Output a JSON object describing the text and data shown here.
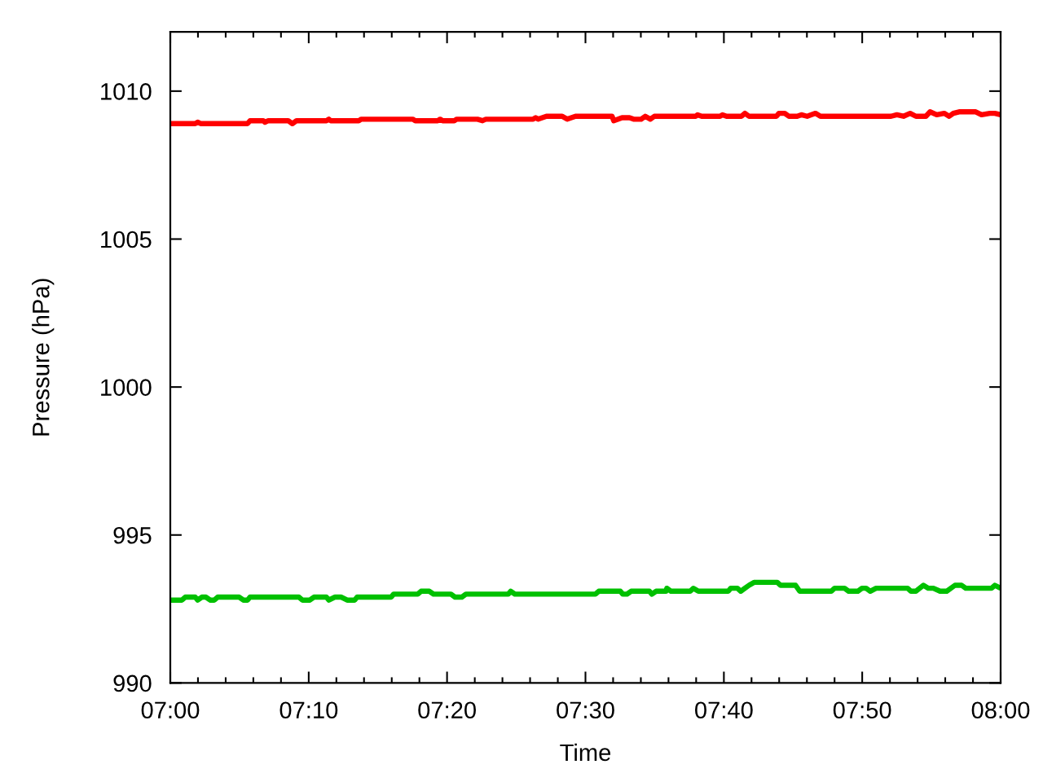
{
  "chart_data": {
    "type": "line",
    "xlabel": "Time",
    "ylabel": "Pressure (hPa)",
    "xlim": [
      7.0,
      8.0
    ],
    "ylim": [
      990,
      1012
    ],
    "xticks": [
      {
        "value": 7.0,
        "label": "07:00"
      },
      {
        "value": 7.0333,
        "label": null
      },
      {
        "value": 7.0667,
        "label": null
      },
      {
        "value": 7.1,
        "label": null
      },
      {
        "value": 7.1333,
        "label": null
      },
      {
        "value": 7.1667,
        "label": "07:10"
      },
      {
        "value": 7.2,
        "label": null
      },
      {
        "value": 7.2333,
        "label": null
      },
      {
        "value": 7.2667,
        "label": null
      },
      {
        "value": 7.3,
        "label": null
      },
      {
        "value": 7.3333,
        "label": "07:20"
      },
      {
        "value": 7.3667,
        "label": null
      },
      {
        "value": 7.4,
        "label": null
      },
      {
        "value": 7.4333,
        "label": null
      },
      {
        "value": 7.4667,
        "label": null
      },
      {
        "value": 7.5,
        "label": "07:30"
      },
      {
        "value": 7.5333,
        "label": null
      },
      {
        "value": 7.5667,
        "label": null
      },
      {
        "value": 7.6,
        "label": null
      },
      {
        "value": 7.6333,
        "label": null
      },
      {
        "value": 7.6667,
        "label": "07:40"
      },
      {
        "value": 7.7,
        "label": null
      },
      {
        "value": 7.7333,
        "label": null
      },
      {
        "value": 7.7667,
        "label": null
      },
      {
        "value": 7.8,
        "label": null
      },
      {
        "value": 7.8333,
        "label": "07:50"
      },
      {
        "value": 7.8667,
        "label": null
      },
      {
        "value": 7.9,
        "label": null
      },
      {
        "value": 7.9333,
        "label": null
      },
      {
        "value": 7.9667,
        "label": null
      },
      {
        "value": 8.0,
        "label": "08:00"
      }
    ],
    "yticks": [
      990,
      995,
      1000,
      1005,
      1010
    ],
    "series": [
      {
        "color": "#ff0000",
        "x": [
          7.0,
          7.03,
          7.033,
          7.037,
          7.093,
          7.096,
          7.112,
          7.114,
          7.118,
          7.142,
          7.147,
          7.152,
          7.188,
          7.191,
          7.193,
          7.227,
          7.23,
          7.292,
          7.295,
          7.322,
          7.325,
          7.328,
          7.342,
          7.345,
          7.37,
          7.376,
          7.38,
          7.437,
          7.44,
          7.443,
          7.453,
          7.472,
          7.478,
          7.488,
          7.532,
          7.534,
          7.544,
          7.553,
          7.558,
          7.567,
          7.572,
          7.578,
          7.583,
          7.633,
          7.635,
          7.64,
          7.662,
          7.665,
          7.67,
          7.688,
          7.692,
          7.697,
          7.73,
          7.733,
          7.74,
          7.745,
          7.755,
          7.76,
          7.767,
          7.777,
          7.783,
          7.868,
          7.875,
          7.883,
          7.891,
          7.898,
          7.91,
          7.915,
          7.923,
          7.932,
          7.938,
          7.943,
          7.95,
          7.97,
          7.977,
          7.987,
          7.993,
          8.0
        ],
        "values": [
          1008.9,
          1008.9,
          1008.95,
          1008.9,
          1008.9,
          1009.0,
          1009.0,
          1008.95,
          1009.0,
          1009.0,
          1008.9,
          1009.0,
          1009.0,
          1009.05,
          1009.0,
          1009.0,
          1009.05,
          1009.05,
          1009.0,
          1009.0,
          1009.05,
          1009.0,
          1009.0,
          1009.05,
          1009.05,
          1009.0,
          1009.05,
          1009.05,
          1009.1,
          1009.05,
          1009.15,
          1009.15,
          1009.05,
          1009.15,
          1009.15,
          1009.0,
          1009.1,
          1009.1,
          1009.05,
          1009.05,
          1009.15,
          1009.05,
          1009.15,
          1009.15,
          1009.2,
          1009.15,
          1009.15,
          1009.2,
          1009.15,
          1009.15,
          1009.25,
          1009.15,
          1009.15,
          1009.25,
          1009.25,
          1009.15,
          1009.15,
          1009.2,
          1009.15,
          1009.25,
          1009.15,
          1009.15,
          1009.2,
          1009.15,
          1009.25,
          1009.15,
          1009.15,
          1009.3,
          1009.2,
          1009.25,
          1009.15,
          1009.25,
          1009.3,
          1009.3,
          1009.2,
          1009.25,
          1009.25,
          1009.2
        ]
      },
      {
        "color": "#00c000",
        "x": [
          7.0,
          7.014,
          7.018,
          7.03,
          7.033,
          7.038,
          7.043,
          7.048,
          7.053,
          7.057,
          7.083,
          7.088,
          7.093,
          7.096,
          7.155,
          7.159,
          7.168,
          7.173,
          7.188,
          7.191,
          7.198,
          7.206,
          7.213,
          7.222,
          7.225,
          7.266,
          7.269,
          7.298,
          7.302,
          7.312,
          7.317,
          7.338,
          7.343,
          7.351,
          7.356,
          7.407,
          7.41,
          7.415,
          7.512,
          7.516,
          7.542,
          7.545,
          7.55,
          7.555,
          7.577,
          7.58,
          7.585,
          7.597,
          7.598,
          7.603,
          7.626,
          7.63,
          7.636,
          7.672,
          7.675,
          7.683,
          7.687,
          7.692,
          7.697,
          7.703,
          7.731,
          7.735,
          7.753,
          7.758,
          7.796,
          7.8,
          7.812,
          7.817,
          7.828,
          7.833,
          7.838,
          7.843,
          7.85,
          7.888,
          7.892,
          7.898,
          7.907,
          7.913,
          7.919,
          7.927,
          7.935,
          7.945,
          7.953,
          7.958,
          7.989,
          7.993,
          8.0
        ],
        "values": [
          992.8,
          992.8,
          992.9,
          992.9,
          992.8,
          992.9,
          992.9,
          992.8,
          992.8,
          992.9,
          992.9,
          992.8,
          992.8,
          992.9,
          992.9,
          992.8,
          992.8,
          992.9,
          992.9,
          992.8,
          992.9,
          992.9,
          992.8,
          992.8,
          992.9,
          992.9,
          993.0,
          993.0,
          993.1,
          993.1,
          993.0,
          993.0,
          992.9,
          992.9,
          993.0,
          993.0,
          993.1,
          993.0,
          993.0,
          993.1,
          993.1,
          993.0,
          993.0,
          993.1,
          993.1,
          993.0,
          993.1,
          993.1,
          993.2,
          993.1,
          993.1,
          993.2,
          993.1,
          993.1,
          993.2,
          993.2,
          993.1,
          993.2,
          993.3,
          993.4,
          993.4,
          993.3,
          993.3,
          993.1,
          993.1,
          993.2,
          993.2,
          993.1,
          993.1,
          993.2,
          993.2,
          993.1,
          993.2,
          993.2,
          993.1,
          993.1,
          993.3,
          993.2,
          993.2,
          993.1,
          993.1,
          993.3,
          993.3,
          993.2,
          993.2,
          993.3,
          993.2
        ]
      }
    ]
  }
}
